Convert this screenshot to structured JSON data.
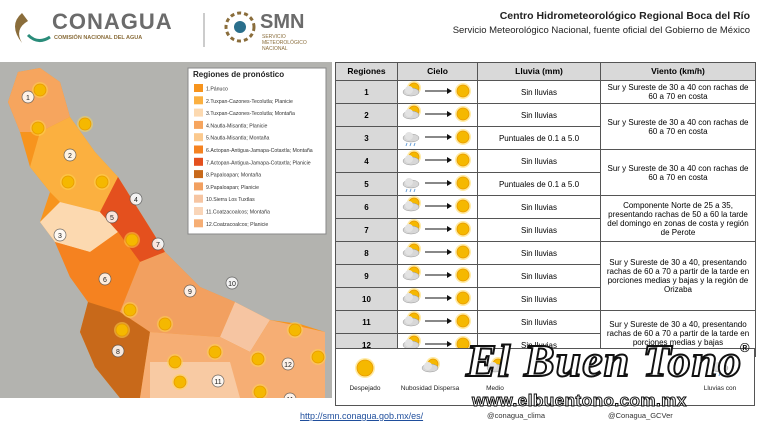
{
  "header": {
    "conagua": "CONAGUA",
    "conagua_sub": "COMISIÓN NACIONAL DEL AGUA",
    "smn": "SMN",
    "smn_sub": "SERVICIO METEOROLÓGICO NACIONAL",
    "title": "Centro Hidrometeorológico Regional Boca del Río",
    "subtitle": "Servicio Meteorológico Nacional, fuente oficial del Gobierno de México"
  },
  "map": {
    "legend_title": "Regiones de pronóstico",
    "legend": [
      {
        "label": "1.Pánuco",
        "color": "#f7941d"
      },
      {
        "label": "2.Tuxpan-Cazones-Tecolutla; Planicie",
        "color": "#fbb040"
      },
      {
        "label": "3.Tuxpan-Cazones-Tecolutla; Montaña",
        "color": "#fcd9b0"
      },
      {
        "label": "4.Nautla-Misantla; Planicie",
        "color": "#f6a55e"
      },
      {
        "label": "5.Nautla-Misantla; Montaña",
        "color": "#fbc98e"
      },
      {
        "label": "6.Actopan-Antigua-Jamapa-Cotaxtla; Montaña",
        "color": "#f58220"
      },
      {
        "label": "7.Actopan-Antigua-Jamapa-Cotaxtla; Planicie",
        "color": "#e4501e"
      },
      {
        "label": "8.Papaloapan; Montaña",
        "color": "#c8691a"
      },
      {
        "label": "9.Papaloapan; Planicie",
        "color": "#f2a060"
      },
      {
        "label": "10.Sierra Los Tuxtlas",
        "color": "#f6c5a2"
      },
      {
        "label": "11.Coatzacoalcos; Montaña",
        "color": "#f9d5b8"
      },
      {
        "label": "12.Coatzacoalcos; Planicie",
        "color": "#f6ae74"
      }
    ],
    "region_labels": [
      "1",
      "2",
      "3",
      "4",
      "5",
      "6",
      "7",
      "8",
      "9",
      "10",
      "11",
      "12",
      "11"
    ]
  },
  "table": {
    "headers": [
      "Regiones",
      "Cielo",
      "Lluvia (mm)",
      "Viento (km/h)"
    ],
    "rows": [
      {
        "region": "1",
        "lluvia": "Sin lluvias",
        "viento": "Sur y Sureste de 30 a 40 con rachas de 60 a 70 en costa"
      },
      {
        "region": "2",
        "lluvia": "Sin lluvias",
        "viento": "Sur y Sureste de 30 a 40 con rachas de 60 a 70 en costa"
      },
      {
        "region": "3",
        "lluvia": "Puntuales de 0.1 a 5.0",
        "viento": null
      },
      {
        "region": "4",
        "lluvia": "Sin lluvias",
        "viento": "Sur y Sureste de 30 a 40 con rachas de 60 a 70 en costa"
      },
      {
        "region": "5",
        "lluvia": "Puntuales de 0.1 a 5.0",
        "viento": null
      },
      {
        "region": "6",
        "lluvia": "Sin lluvias",
        "viento": "Componente Norte de 25 a 35, presentando rachas de 50 a 60 la tarde del domingo en zonas de costa y región de Perote"
      },
      {
        "region": "7",
        "lluvia": "Sin lluvias",
        "viento": null
      },
      {
        "region": "8",
        "lluvia": "Sin lluvias",
        "viento": "Sur y Sureste de 30 a 40, presentando rachas de 60 a 70 a partir de la tarde en porciones medias y bajas y la región de Orizaba"
      },
      {
        "region": "9",
        "lluvia": "Sin lluvias",
        "viento": null
      },
      {
        "region": "10",
        "lluvia": "Sin lluvias",
        "viento": null
      },
      {
        "region": "11",
        "lluvia": "Sin lluvias",
        "viento": "Sur y Sureste de 30 a 40, presentando rachas de 60 a 70 a partir de la tarde en porciones medias y bajas"
      },
      {
        "region": "12",
        "lluvia": "Sin lluvias",
        "viento": null
      }
    ]
  },
  "sky_legend": [
    "Despejado",
    "Nubosidad Dispersa",
    "Medio",
    "Lluvias con"
  ],
  "footer": {
    "url": "http://smn.conagua.gob.mx/es/",
    "social_1": "@conagua_clima",
    "social_2": "@Conagua_GCVer"
  },
  "watermark": {
    "brand": "El Buen Tono",
    "mark": "®",
    "site": "www.elbuentono.com.mx"
  }
}
